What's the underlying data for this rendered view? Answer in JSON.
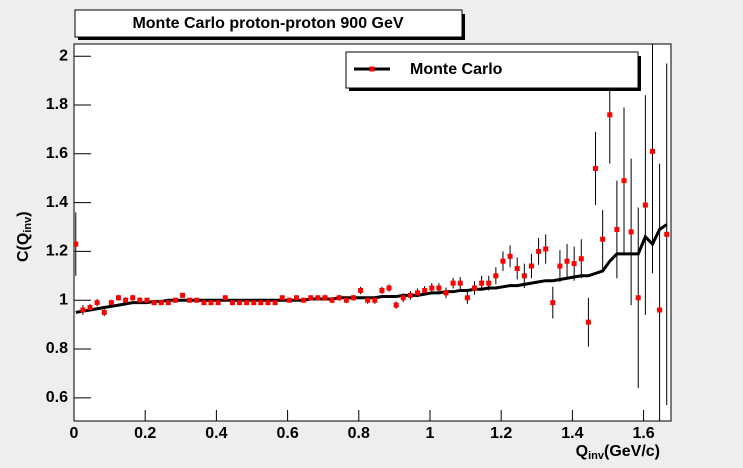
{
  "chart_data": {
    "type": "errorbar",
    "title": "Monte Carlo proton-proton 900 GeV",
    "x_label": {
      "main": "Q",
      "sub": "inv",
      "rest": "(GeV/c)"
    },
    "y_label": {
      "main": "C(Q",
      "sub": "inv",
      "close": ")"
    },
    "x": [
      0.005,
      0.025,
      0.045,
      0.065,
      0.085,
      0.105,
      0.125,
      0.145,
      0.165,
      0.185,
      0.205,
      0.225,
      0.245,
      0.265,
      0.285,
      0.305,
      0.325,
      0.345,
      0.365,
      0.385,
      0.405,
      0.425,
      0.445,
      0.465,
      0.485,
      0.505,
      0.525,
      0.545,
      0.565,
      0.585,
      0.605,
      0.625,
      0.645,
      0.665,
      0.685,
      0.705,
      0.725,
      0.745,
      0.765,
      0.785,
      0.805,
      0.825,
      0.845,
      0.865,
      0.885,
      0.905,
      0.925,
      0.945,
      0.965,
      0.985,
      1.005,
      1.025,
      1.045,
      1.065,
      1.085,
      1.105,
      1.125,
      1.145,
      1.165,
      1.185,
      1.205,
      1.225,
      1.245,
      1.265,
      1.285,
      1.305,
      1.325,
      1.345,
      1.365,
      1.385,
      1.405,
      1.425,
      1.445,
      1.465,
      1.485,
      1.505,
      1.525,
      1.545,
      1.565,
      1.585,
      1.605,
      1.625,
      1.645,
      1.665
    ],
    "series": [
      {
        "name": "Monte Carlo",
        "color": "#ff0000",
        "line_color": "#000000",
        "values": [
          1.23,
          0.96,
          0.97,
          0.99,
          0.95,
          0.99,
          1.01,
          1.0,
          1.01,
          1.0,
          1.0,
          0.99,
          0.99,
          0.99,
          1.0,
          1.02,
          1.0,
          1.0,
          0.99,
          0.99,
          0.99,
          1.01,
          0.99,
          0.99,
          0.99,
          0.99,
          0.99,
          0.99,
          0.99,
          1.01,
          1.0,
          1.01,
          1.0,
          1.01,
          1.01,
          1.01,
          1.0,
          1.01,
          1.0,
          1.01,
          1.04,
          1.0,
          1.0,
          1.04,
          1.05,
          0.98,
          1.01,
          1.02,
          1.03,
          1.04,
          1.05,
          1.05,
          1.03,
          1.07,
          1.07,
          1.01,
          1.05,
          1.07,
          1.07,
          1.1,
          1.16,
          1.18,
          1.13,
          1.1,
          1.14,
          1.2,
          1.21,
          0.99,
          1.14,
          1.16,
          1.15,
          1.17,
          0.91,
          1.54,
          1.25,
          1.76,
          1.29,
          1.49,
          1.28,
          1.01,
          1.39,
          1.61,
          0.96,
          1.27
        ],
        "errors": [
          0.13,
          0.02,
          0.015,
          0.015,
          0.015,
          0.012,
          0.012,
          0.012,
          0.012,
          0.012,
          0.01,
          0.01,
          0.01,
          0.01,
          0.01,
          0.01,
          0.01,
          0.01,
          0.01,
          0.01,
          0.01,
          0.01,
          0.01,
          0.01,
          0.01,
          0.01,
          0.01,
          0.01,
          0.01,
          0.01,
          0.01,
          0.01,
          0.01,
          0.01,
          0.01,
          0.012,
          0.012,
          0.012,
          0.012,
          0.012,
          0.015,
          0.015,
          0.015,
          0.015,
          0.015,
          0.015,
          0.018,
          0.018,
          0.018,
          0.018,
          0.02,
          0.02,
          0.022,
          0.022,
          0.025,
          0.025,
          0.028,
          0.03,
          0.03,
          0.035,
          0.04,
          0.045,
          0.045,
          0.05,
          0.05,
          0.055,
          0.06,
          0.065,
          0.065,
          0.07,
          0.07,
          0.08,
          0.1,
          0.15,
          0.12,
          0.2,
          0.2,
          0.3,
          0.3,
          0.37,
          0.45,
          0.5,
          0.6,
          0.7
        ],
        "line_values": [
          0.95,
          0.955,
          0.96,
          0.965,
          0.97,
          0.975,
          0.98,
          0.985,
          0.99,
          0.99,
          0.99,
          0.995,
          0.995,
          1,
          1,
          1,
          1,
          1,
          1,
          1,
          1,
          1,
          1,
          1,
          1,
          1,
          1,
          1,
          1,
          1,
          1,
          1,
          1,
          1.005,
          1.005,
          1.005,
          1.005,
          1.01,
          1.01,
          1.01,
          1.01,
          1.01,
          1.01,
          1.015,
          1.015,
          1.015,
          1.02,
          1.02,
          1.02,
          1.025,
          1.03,
          1.03,
          1.035,
          1.035,
          1.04,
          1.04,
          1.045,
          1.045,
          1.05,
          1.05,
          1.055,
          1.06,
          1.06,
          1.065,
          1.07,
          1.075,
          1.08,
          1.08,
          1.085,
          1.09,
          1.095,
          1.1,
          1.1,
          1.11,
          1.12,
          1.16,
          1.19,
          1.19,
          1.19,
          1.19,
          1.26,
          1.23,
          1.29,
          1.31
        ]
      }
    ],
    "xlim": [
      0,
      1.677
    ],
    "ylim": [
      0.505,
      2.05
    ],
    "xticks": [
      0,
      0.2,
      0.4,
      0.6,
      0.8,
      1,
      1.2,
      1.4,
      1.6
    ],
    "yticks": [
      0.6,
      0.8,
      1,
      1.2,
      1.4,
      1.6,
      1.8,
      2
    ],
    "legend": "top-right"
  }
}
